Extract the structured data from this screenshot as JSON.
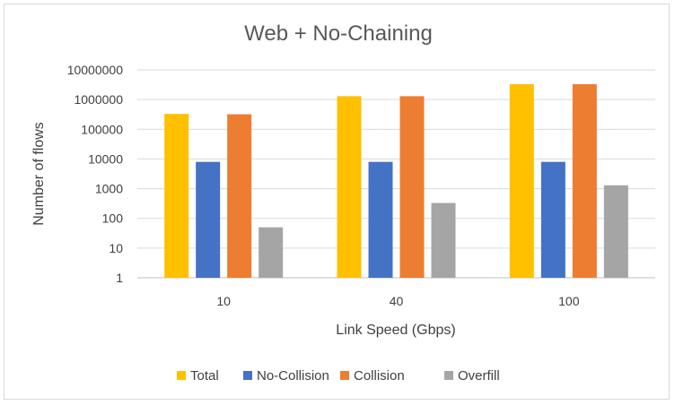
{
  "chart_data": {
    "type": "bar",
    "title": "Web + No-Chaining",
    "xlabel": "Link Speed (Gbps)",
    "ylabel": "Number of flows",
    "yscale": "log",
    "ylim": [
      1,
      10000000
    ],
    "yticks": [
      "1",
      "10",
      "100",
      "1000",
      "10000",
      "100000",
      "1000000",
      "10000000"
    ],
    "categories": [
      "10",
      "40",
      "100"
    ],
    "series": [
      {
        "name": "Total",
        "color": "#FFC000",
        "values": [
          330000,
          1300000,
          3300000
        ]
      },
      {
        "name": "No-Collision",
        "color": "#4472C4",
        "values": [
          8000,
          8000,
          8000
        ]
      },
      {
        "name": "Collision",
        "color": "#ED7D31",
        "values": [
          320000,
          1300000,
          3300000
        ]
      },
      {
        "name": "Overfill",
        "color": "#A5A5A5",
        "values": [
          50,
          330,
          1300
        ]
      }
    ],
    "grid": "horizontal",
    "legend": "bottom"
  }
}
